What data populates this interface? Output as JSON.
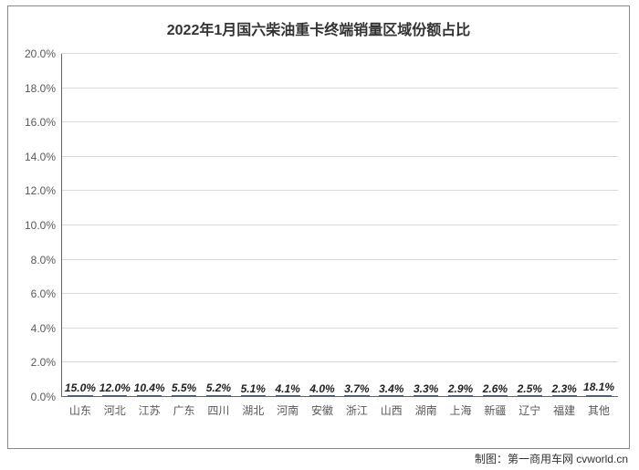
{
  "chart": {
    "type": "bar",
    "title": "2022年1月国六柴油重卡终端销量区域份额占比",
    "title_fontsize": 16,
    "title_weight": "bold",
    "title_color": "#333333",
    "categories": [
      "山东",
      "河北",
      "江苏",
      "广东",
      "四川",
      "湖北",
      "河南",
      "安徽",
      "浙江",
      "山西",
      "湖南",
      "上海",
      "新疆",
      "辽宁",
      "福建",
      "其他"
    ],
    "values": [
      15.0,
      12.0,
      10.4,
      5.5,
      5.2,
      5.1,
      4.1,
      4.0,
      3.7,
      3.4,
      3.3,
      2.9,
      2.6,
      2.5,
      2.3,
      18.1
    ],
    "value_labels": [
      "15.0%",
      "12.0%",
      "10.4%",
      "5.5%",
      "5.2%",
      "5.1%",
      "4.1%",
      "4.0%",
      "3.7%",
      "3.4%",
      "3.3%",
      "2.9%",
      "2.6%",
      "2.5%",
      "2.3%",
      "18.1%"
    ],
    "bar_color": "#4472c4",
    "bar_border_color": "#3a5a8a",
    "bar_width": 0.72,
    "ylim": [
      0,
      20
    ],
    "ytick_step": 2,
    "ytick_labels": [
      "0.0%",
      "2.0%",
      "4.0%",
      "6.0%",
      "8.0%",
      "10.0%",
      "12.0%",
      "14.0%",
      "16.0%",
      "18.0%",
      "20.0%"
    ],
    "ytick_values": [
      0,
      2,
      4,
      6,
      8,
      10,
      12,
      14,
      16,
      18,
      20
    ],
    "grid_color": "#d9d9d9",
    "axis_color": "#646464",
    "background_color": "#ffffff",
    "label_fontsize": 12,
    "category_fontsize": 12,
    "datalabel_fontsize": 12,
    "datalabel_style": "italic",
    "datalabel_weight": "bold",
    "border_color": "#8a8a8a"
  },
  "attribution": {
    "text": "制图：第一商用车网 cvworld.cn",
    "fontsize": 12,
    "color": "#333333"
  }
}
